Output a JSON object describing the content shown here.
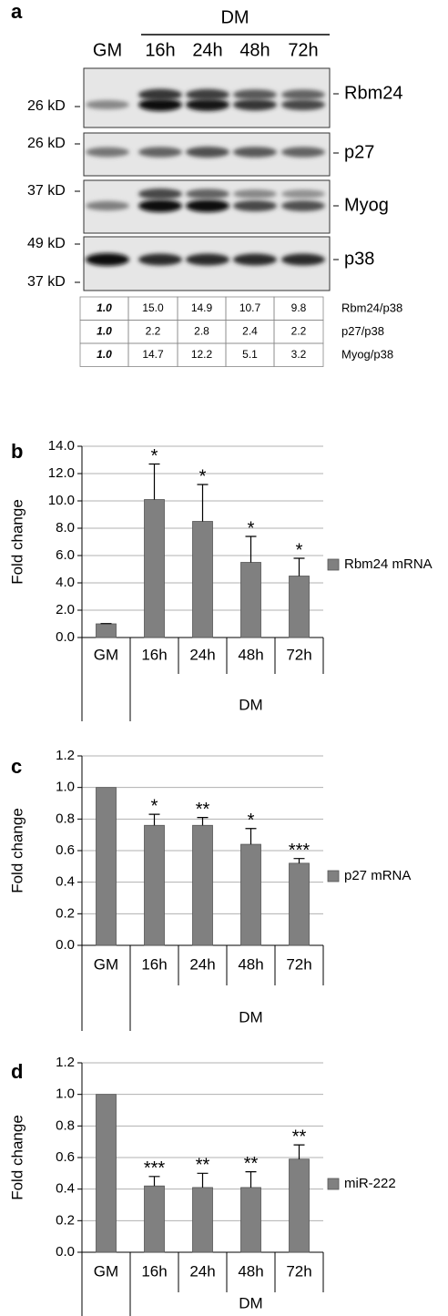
{
  "blot": {
    "panel": "a",
    "dm_label": "DM",
    "lanes": [
      "GM",
      "16h",
      "24h",
      "48h",
      "72h"
    ],
    "markers": [
      "26 kD",
      "26 kD",
      "37 kD",
      "49 kD",
      "37 kD"
    ],
    "proteins": [
      "Rbm24",
      "p27",
      "Myog",
      "p38"
    ],
    "ratios": [
      {
        "label": "Rbm24/p38",
        "values": [
          "1.0",
          "15.0",
          "14.9",
          "10.7",
          "9.8"
        ]
      },
      {
        "label": "p27/p38",
        "values": [
          "1.0",
          "2.2",
          "2.8",
          "2.4",
          "2.2"
        ]
      },
      {
        "label": "Myog/p38",
        "values": [
          "1.0",
          "14.7",
          "12.2",
          "5.1",
          "3.2"
        ]
      }
    ]
  },
  "chart_data": [
    {
      "type": "bar",
      "panel": "b",
      "y_label": "Fold change",
      "group_label": "DM",
      "categories": [
        "GM",
        "16h",
        "24h",
        "48h",
        "72h"
      ],
      "series": [
        {
          "name": "Rbm24 mRNA",
          "color": "#808080",
          "values": [
            1.0,
            10.1,
            8.5,
            5.5,
            4.5
          ],
          "errors": [
            0.02,
            2.6,
            2.7,
            1.9,
            1.3
          ]
        }
      ],
      "significance": [
        null,
        "*",
        "*",
        "*",
        "*"
      ],
      "ylim": [
        0,
        14
      ],
      "yticks": [
        {
          "value": 0,
          "label": "0.0"
        },
        {
          "value": 2,
          "label": "2.0"
        },
        {
          "value": 4,
          "label": "4.0"
        },
        {
          "value": 6,
          "label": "6.0"
        },
        {
          "value": 8,
          "label": "8.0"
        },
        {
          "value": 10,
          "label": "10.0"
        },
        {
          "value": 12,
          "label": "12.0"
        },
        {
          "value": 14,
          "label": "14.0"
        }
      ],
      "grid": true
    },
    {
      "type": "bar",
      "panel": "c",
      "y_label": "Fold change",
      "group_label": "DM",
      "categories": [
        "GM",
        "16h",
        "24h",
        "48h",
        "72h"
      ],
      "series": [
        {
          "name": "p27 mRNA",
          "color": "#808080",
          "values": [
            1.0,
            0.76,
            0.76,
            0.64,
            0.52
          ],
          "errors": [
            0,
            0.07,
            0.05,
            0.1,
            0.03
          ]
        }
      ],
      "significance": [
        null,
        "*",
        "**",
        "*",
        "***"
      ],
      "ylim": [
        0,
        1.2
      ],
      "yticks": [
        {
          "value": 0,
          "label": "0.0"
        },
        0.2,
        0.4,
        0.6,
        0.8,
        {
          "value": 1,
          "label": "1.0"
        },
        1.2
      ],
      "grid": true
    },
    {
      "type": "bar",
      "panel": "d",
      "y_label": "Fold change",
      "group_label": "DM",
      "categories": [
        "GM",
        "16h",
        "24h",
        "48h",
        "72h"
      ],
      "series": [
        {
          "name": "miR-222",
          "color": "#808080",
          "values": [
            1.0,
            0.42,
            0.41,
            0.41,
            0.59
          ],
          "errors": [
            0,
            0.06,
            0.09,
            0.1,
            0.09
          ]
        }
      ],
      "significance": [
        null,
        "***",
        "**",
        "**",
        "**"
      ],
      "ylim": [
        0,
        1.2
      ],
      "yticks": [
        {
          "value": 0,
          "label": "0.0"
        },
        0.2,
        0.4,
        0.6,
        0.8,
        {
          "value": 1,
          "label": "1.0"
        },
        1.2
      ],
      "grid": true
    }
  ]
}
